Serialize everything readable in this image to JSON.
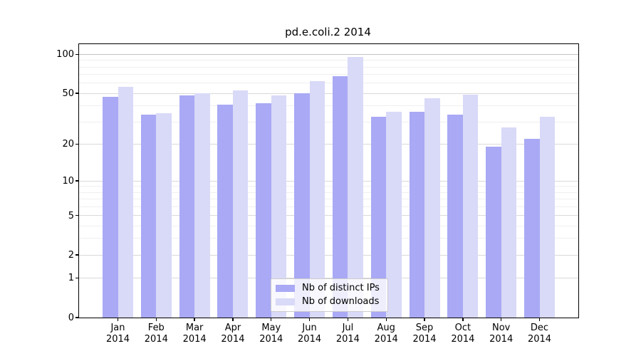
{
  "chart_data": {
    "type": "bar",
    "title": "pd.e.coli.2 2014",
    "xlabel": "",
    "ylabel": "",
    "yscale": "log1p",
    "ylim": [
      0,
      120
    ],
    "grid": true,
    "legend_position": "lower center inside plot",
    "categories": [
      "Jan",
      "Feb",
      "Mar",
      "Apr",
      "May",
      "Jun",
      "Jul",
      "Aug",
      "Sep",
      "Oct",
      "Nov",
      "Dec"
    ],
    "category_year": "2014",
    "series": [
      {
        "name": "Nb of distinct IPs",
        "color": "#a9a9f5",
        "values": [
          47,
          34,
          48,
          41,
          42,
          50,
          68,
          33,
          36,
          34,
          19,
          22
        ]
      },
      {
        "name": "Nb of downloads",
        "color": "#d9d9f8",
        "values": [
          56,
          35,
          50,
          53,
          48,
          62,
          96,
          36,
          46,
          49,
          27,
          33
        ]
      }
    ],
    "yticks": [
      0,
      1,
      2,
      5,
      10,
      20,
      50,
      100
    ],
    "yticks_minor": [
      3,
      4,
      6,
      7,
      8,
      9,
      30,
      40,
      60,
      70,
      80,
      90
    ]
  },
  "style_colors": {
    "grid_major": "#d9d9d9",
    "grid_major_top": "#c2c2c2",
    "grid_minor": "#efefef",
    "axis": "#000000"
  }
}
